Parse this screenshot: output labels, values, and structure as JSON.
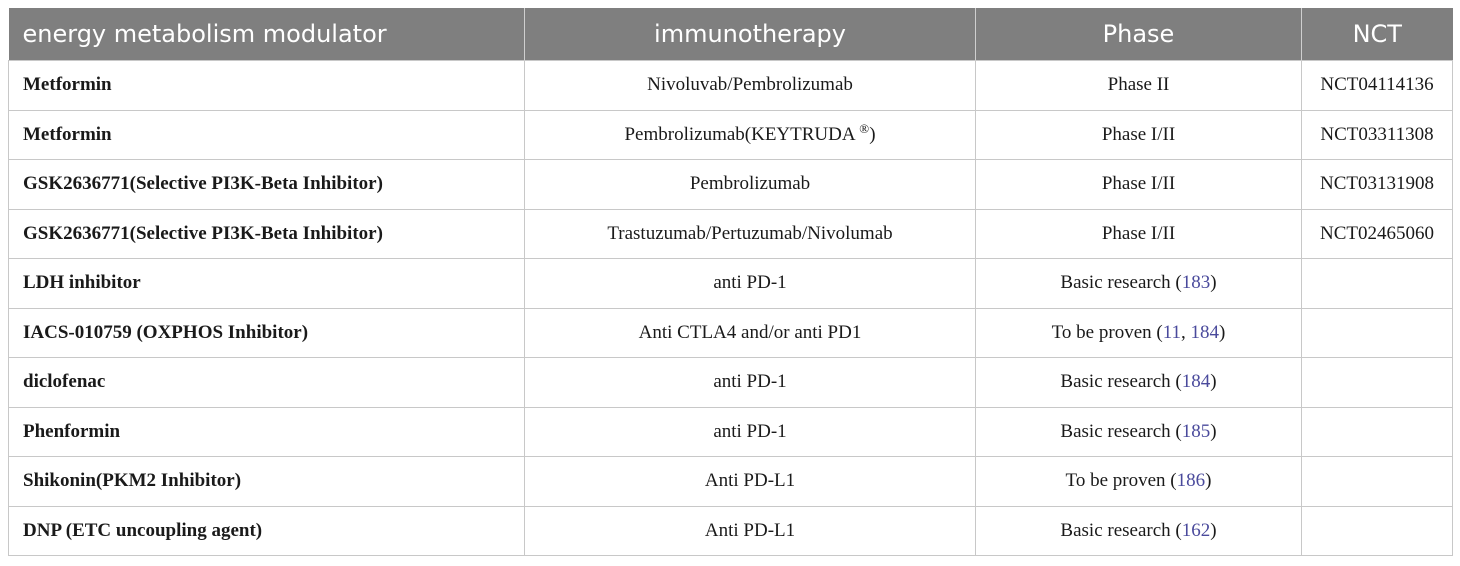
{
  "table": {
    "headers": [
      "energy metabolism modulator",
      "immunotherapy",
      "Phase",
      "NCT"
    ],
    "rows": [
      {
        "modulator": "Metformin",
        "immunotherapy": "Nivoluvab/Pembrolizumab",
        "phase": "Phase II",
        "phase_refs": [],
        "nct": "NCT04114136"
      },
      {
        "modulator": "Metformin",
        "immunotherapy": "Pembrolizumab(KEYTRUDA ",
        "immunotherapy_sup": "®",
        "immunotherapy_suffix": ")",
        "phase": "Phase I/II",
        "phase_refs": [],
        "nct": "NCT03311308"
      },
      {
        "modulator": "GSK2636771(Selective PI3K-Beta Inhibitor)",
        "immunotherapy": "Pembrolizumab",
        "phase": "Phase I/II",
        "phase_refs": [],
        "nct": "NCT03131908"
      },
      {
        "modulator": "GSK2636771(Selective PI3K-Beta Inhibitor)",
        "immunotherapy": "Trastuzumab/Pertuzumab/Nivolumab",
        "phase": "Phase I/II",
        "phase_refs": [],
        "nct": "NCT02465060"
      },
      {
        "modulator": "LDH inhibitor",
        "immunotherapy": "anti PD-1",
        "phase": "Basic research",
        "phase_refs": [
          "183"
        ],
        "nct": ""
      },
      {
        "modulator": "IACS-010759 (OXPHOS Inhibitor)",
        "immunotherapy": "Anti CTLA4 and/or anti PD1",
        "phase": "To be proven",
        "phase_refs": [
          "11",
          "184"
        ],
        "nct": ""
      },
      {
        "modulator": "diclofenac",
        "immunotherapy": "anti PD-1",
        "phase": "Basic research",
        "phase_refs": [
          "184"
        ],
        "nct": ""
      },
      {
        "modulator": "Phenformin",
        "immunotherapy": "anti PD-1",
        "phase": "Basic research",
        "phase_refs": [
          "185"
        ],
        "nct": ""
      },
      {
        "modulator": "Shikonin(PKM2 Inhibitor)",
        "immunotherapy": "Anti PD-L1",
        "phase": "To be proven",
        "phase_refs": [
          "186"
        ],
        "nct": ""
      },
      {
        "modulator": "DNP (ETC uncoupling agent)",
        "immunotherapy": "Anti PD-L1",
        "phase": "Basic research",
        "phase_refs": [
          "162"
        ],
        "nct": ""
      }
    ]
  }
}
